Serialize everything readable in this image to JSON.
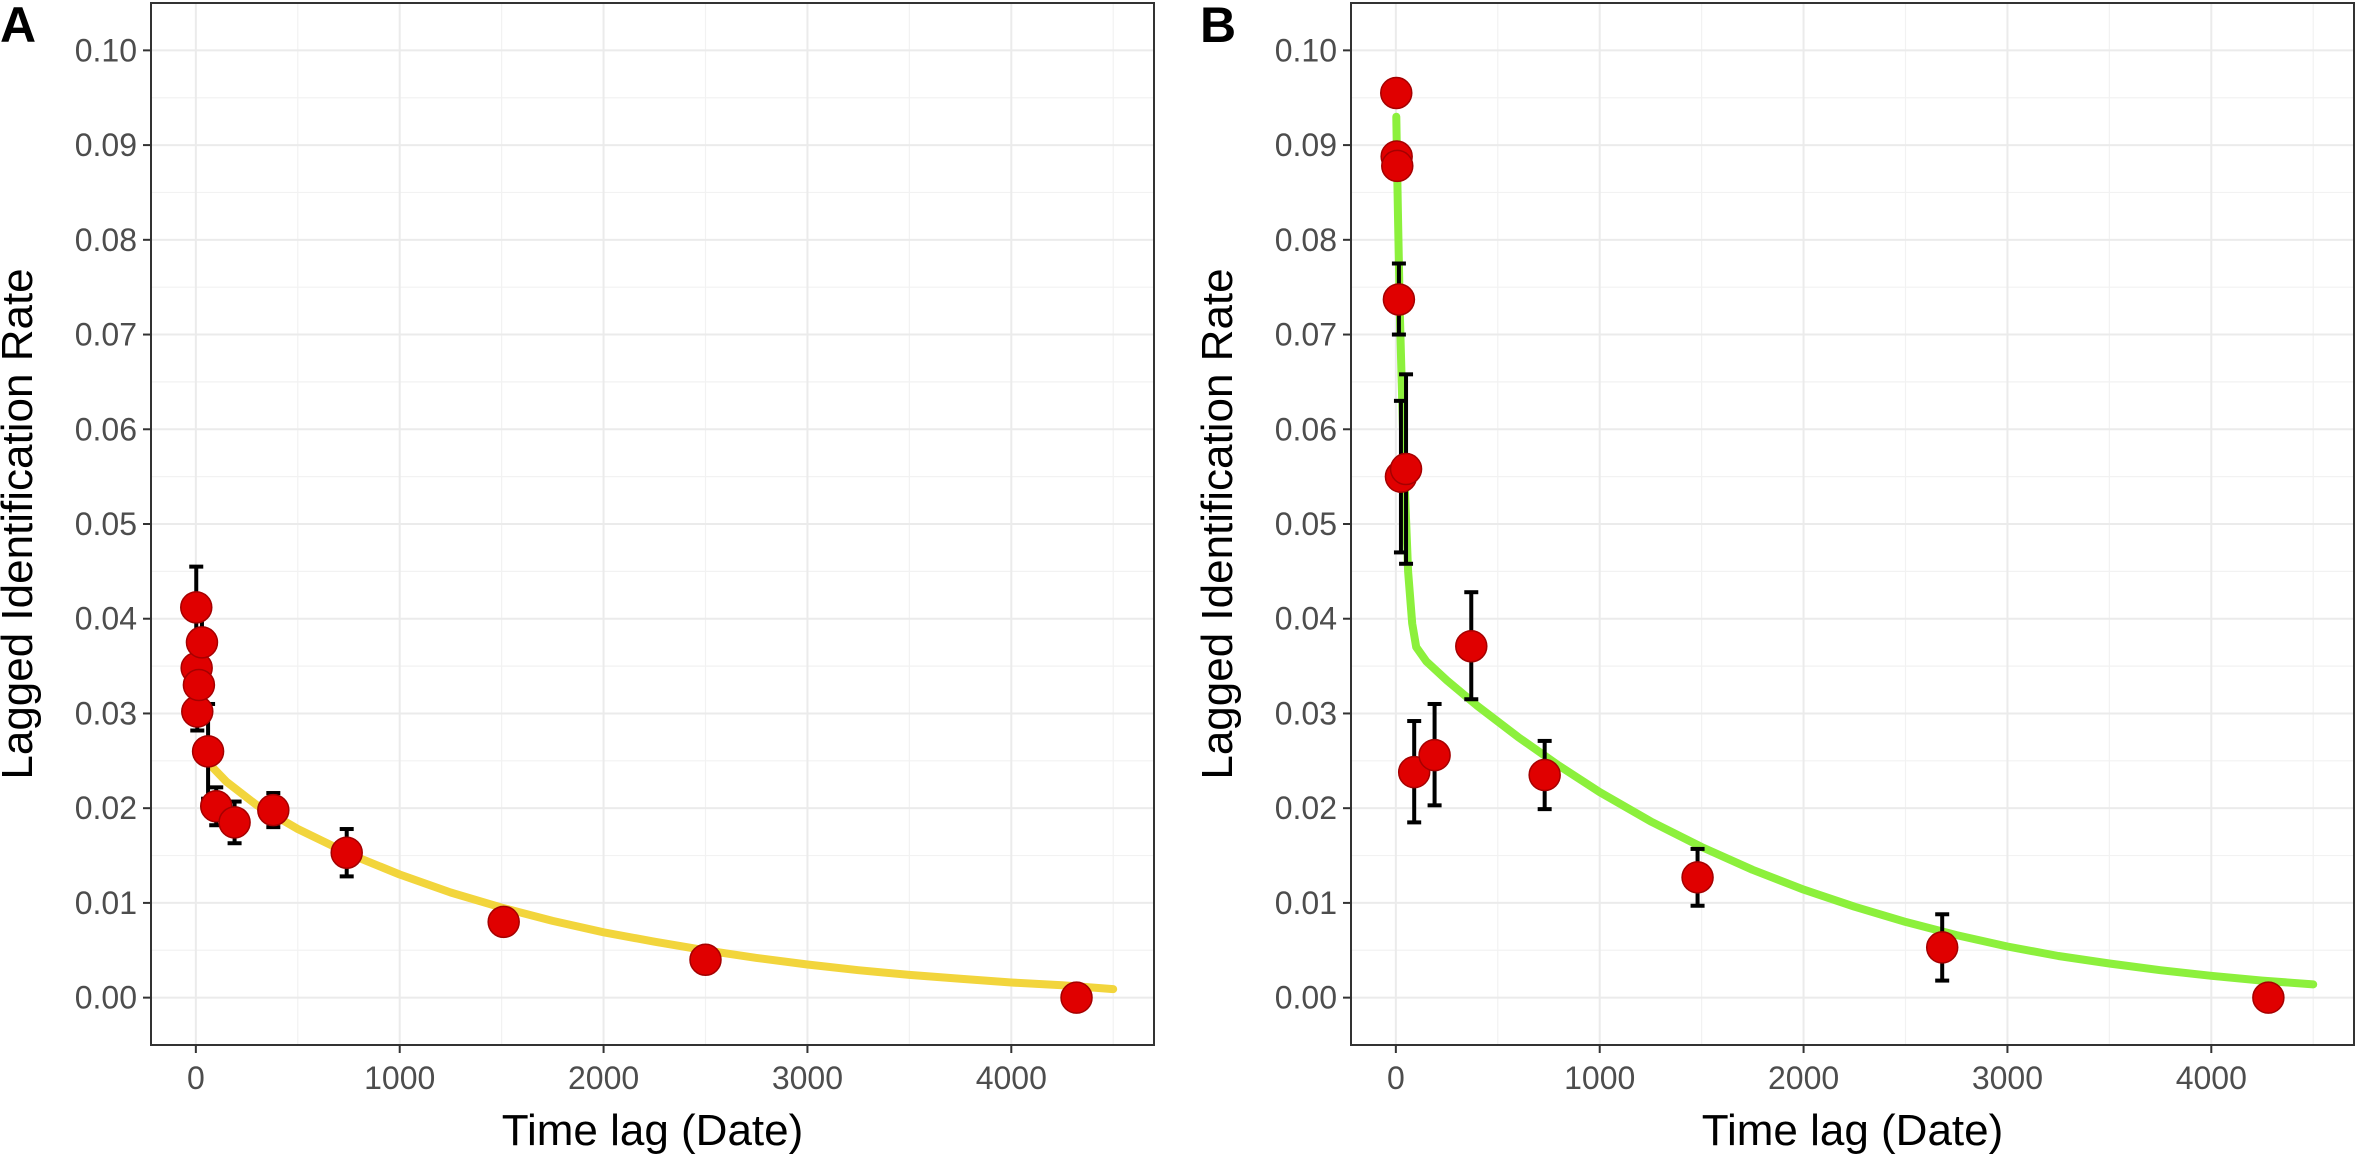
{
  "chart_data": [
    {
      "panel_label": "A",
      "type": "scatter",
      "xlabel": "Time lag (Date)",
      "ylabel": "Lagged Identification Rate",
      "xlim": [
        -220,
        4700
      ],
      "ylim": [
        -0.005,
        0.105
      ],
      "x_ticks": [
        0,
        1000,
        2000,
        3000,
        4000
      ],
      "x_tick_labels": [
        "0",
        "1000",
        "2000",
        "3000",
        "4000"
      ],
      "y_ticks": [
        0,
        0.01,
        0.02,
        0.03,
        0.04,
        0.05,
        0.06,
        0.07,
        0.08,
        0.09,
        0.1
      ],
      "y_tick_labels": [
        "0.00",
        "0.01",
        "0.02",
        "0.03",
        "0.04",
        "0.05",
        "0.06",
        "0.07",
        "0.08",
        "0.09",
        "0.10"
      ],
      "grid": true,
      "point_color": "#e00000",
      "errorbar_color": "#000000",
      "fit_color": "#f2d53c",
      "points": [
        {
          "x": 2,
          "y": 0.0412,
          "lo": 0.0368,
          "hi": 0.0455
        },
        {
          "x": 4,
          "y": 0.0348,
          "lo": 0.0318,
          "hi": 0.0378
        },
        {
          "x": 7,
          "y": 0.0302,
          "lo": 0.0282,
          "hi": 0.0322
        },
        {
          "x": 15,
          "y": 0.033,
          "lo": 0.03,
          "hi": 0.036
        },
        {
          "x": 30,
          "y": 0.0375,
          "lo": 0.034,
          "hi": 0.041
        },
        {
          "x": 60,
          "y": 0.026,
          "lo": 0.021,
          "hi": 0.031
        },
        {
          "x": 100,
          "y": 0.0202,
          "lo": 0.0182,
          "hi": 0.0222
        },
        {
          "x": 190,
          "y": 0.0185,
          "lo": 0.0163,
          "hi": 0.0207
        },
        {
          "x": 380,
          "y": 0.0198,
          "lo": 0.018,
          "hi": 0.0216
        },
        {
          "x": 740,
          "y": 0.0153,
          "lo": 0.0128,
          "hi": 0.0178
        },
        {
          "x": 1510,
          "y": 0.008,
          "lo": 0.0075,
          "hi": 0.0085
        },
        {
          "x": 2500,
          "y": 0.004,
          "lo": 0.0036,
          "hi": 0.0044
        },
        {
          "x": 4320,
          "y": 0.0,
          "lo": 0.0,
          "hi": 0.0
        }
      ],
      "fit": {
        "x": [
          60,
          150,
          300,
          500,
          750,
          1000,
          1250,
          1500,
          1750,
          2000,
          2250,
          2500,
          2750,
          3000,
          3250,
          3500,
          3750,
          4000,
          4250,
          4500
        ],
        "y": [
          0.0248,
          0.0228,
          0.0203,
          0.0178,
          0.0152,
          0.013,
          0.0111,
          0.0095,
          0.0081,
          0.0069,
          0.0059,
          0.005,
          0.0042,
          0.0035,
          0.0029,
          0.0024,
          0.002,
          0.0016,
          0.0013,
          0.0009
        ]
      }
    },
    {
      "panel_label": "B",
      "type": "scatter",
      "xlabel": "Time lag (Date)",
      "ylabel": "Lagged Identification Rate",
      "xlim": [
        -220,
        4700
      ],
      "ylim": [
        -0.005,
        0.105
      ],
      "x_ticks": [
        0,
        1000,
        2000,
        3000,
        4000
      ],
      "x_tick_labels": [
        "0",
        "1000",
        "2000",
        "3000",
        "4000"
      ],
      "y_ticks": [
        0,
        0.01,
        0.02,
        0.03,
        0.04,
        0.05,
        0.06,
        0.07,
        0.08,
        0.09,
        0.1
      ],
      "y_tick_labels": [
        "0.00",
        "0.01",
        "0.02",
        "0.03",
        "0.04",
        "0.05",
        "0.06",
        "0.07",
        "0.08",
        "0.09",
        "0.10"
      ],
      "grid": true,
      "point_color": "#e00000",
      "errorbar_color": "#000000",
      "fit_color": "#8cf03c",
      "points": [
        {
          "x": 2,
          "y": 0.0955,
          "lo": 0.095,
          "hi": 0.096
        },
        {
          "x": 4,
          "y": 0.0888,
          "lo": 0.088,
          "hi": 0.0896
        },
        {
          "x": 7,
          "y": 0.0878,
          "lo": 0.087,
          "hi": 0.0886
        },
        {
          "x": 15,
          "y": 0.0737,
          "lo": 0.07,
          "hi": 0.0775
        },
        {
          "x": 25,
          "y": 0.055,
          "lo": 0.047,
          "hi": 0.063
        },
        {
          "x": 50,
          "y": 0.0558,
          "lo": 0.0458,
          "hi": 0.0658
        },
        {
          "x": 90,
          "y": 0.0238,
          "lo": 0.0185,
          "hi": 0.0292
        },
        {
          "x": 190,
          "y": 0.0256,
          "lo": 0.0203,
          "hi": 0.031
        },
        {
          "x": 370,
          "y": 0.0371,
          "lo": 0.0315,
          "hi": 0.0428
        },
        {
          "x": 730,
          "y": 0.0235,
          "lo": 0.0199,
          "hi": 0.0271
        },
        {
          "x": 1480,
          "y": 0.0127,
          "lo": 0.0097,
          "hi": 0.0157
        },
        {
          "x": 2680,
          "y": 0.0053,
          "lo": 0.0018,
          "hi": 0.0088
        },
        {
          "x": 4280,
          "y": 0.0,
          "lo": 0.0,
          "hi": 0.0
        }
      ],
      "fit": {
        "x": [
          2,
          5,
          10,
          20,
          40,
          60,
          80,
          100,
          150,
          250,
          400,
          600,
          800,
          1000,
          1250,
          1500,
          1750,
          2000,
          2250,
          2500,
          2750,
          3000,
          3250,
          3500,
          3750,
          4000,
          4250,
          4500
        ],
        "y": [
          0.093,
          0.089,
          0.083,
          0.072,
          0.056,
          0.045,
          0.0395,
          0.037,
          0.0355,
          0.0335,
          0.0308,
          0.0275,
          0.0245,
          0.0217,
          0.0186,
          0.0159,
          0.0135,
          0.0114,
          0.0096,
          0.008,
          0.0066,
          0.0054,
          0.0044,
          0.0036,
          0.0029,
          0.0023,
          0.0018,
          0.0014
        ]
      }
    }
  ]
}
